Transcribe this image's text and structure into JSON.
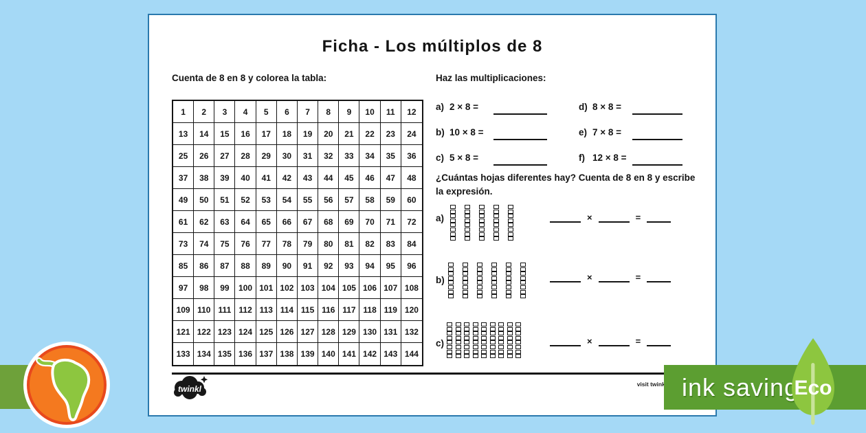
{
  "title": "Ficha - Los múltiplos de 8",
  "instructions": {
    "left": "Cuenta de 8 en 8 y colorea la tabla:",
    "right": "Haz las multiplicaciones:"
  },
  "grid": {
    "rows": [
      [
        1,
        2,
        3,
        4,
        5,
        6,
        7,
        8,
        9,
        10,
        11,
        12
      ],
      [
        13,
        14,
        15,
        16,
        17,
        18,
        19,
        20,
        21,
        22,
        23,
        24
      ],
      [
        25,
        26,
        27,
        28,
        29,
        30,
        31,
        32,
        33,
        34,
        35,
        36
      ],
      [
        37,
        38,
        39,
        40,
        41,
        42,
        43,
        44,
        45,
        46,
        47,
        48
      ],
      [
        49,
        50,
        51,
        52,
        53,
        54,
        55,
        56,
        57,
        58,
        59,
        60
      ],
      [
        61,
        62,
        63,
        64,
        65,
        66,
        67,
        68,
        69,
        70,
        71,
        72
      ],
      [
        73,
        74,
        75,
        76,
        77,
        78,
        79,
        80,
        81,
        82,
        83,
        84
      ],
      [
        85,
        86,
        87,
        88,
        89,
        90,
        91,
        92,
        93,
        94,
        95,
        96
      ],
      [
        97,
        98,
        99,
        100,
        101,
        102,
        103,
        104,
        105,
        106,
        107,
        108
      ],
      [
        109,
        110,
        111,
        112,
        113,
        114,
        115,
        116,
        117,
        118,
        119,
        120
      ],
      [
        121,
        122,
        123,
        124,
        125,
        126,
        127,
        128,
        129,
        130,
        131,
        132
      ],
      [
        133,
        134,
        135,
        136,
        137,
        138,
        139,
        140,
        141,
        142,
        143,
        144
      ]
    ]
  },
  "problems": {
    "left": [
      {
        "label": "a)",
        "expression": "2 × 8 ="
      },
      {
        "label": "b)",
        "expression": "10 × 8 ="
      },
      {
        "label": "c)",
        "expression": "5 × 8 ="
      }
    ],
    "right": [
      {
        "label": "d)",
        "expression": "8 × 8 ="
      },
      {
        "label": "e)",
        "expression": "7 × 8 ="
      },
      {
        "label": "f)",
        "expression": "12 × 8 ="
      }
    ]
  },
  "counting_question": "¿Cuántas hojas diferentes hay? Cuenta de 8 en 8 y escribe la expresión.",
  "sections": [
    {
      "label": "a)",
      "towers": 5,
      "cubes_per_tower": 8
    },
    {
      "label": "b)",
      "towers": 6,
      "cubes_per_tower": 8
    },
    {
      "label": "c)",
      "towers": 9,
      "cubes_per_tower": 8
    }
  ],
  "symbols": {
    "times": "×",
    "equals": "="
  },
  "footer": {
    "logo": "twinkl",
    "visit": "visit twinkl.com"
  },
  "badges": {
    "ink_saving": "ink saving",
    "eco": "Eco"
  },
  "colors": {
    "background": "#a5d9f6",
    "page_border": "#2a79ad",
    "banner_green": "#5c9e31",
    "leaf_green": "#8dc63f",
    "stem_green": "#c8e39a",
    "ribbon_green": "#6ea13a",
    "globe_orange": "#f4791f",
    "globe_rim": "#e8491d",
    "ink": "#141414"
  }
}
